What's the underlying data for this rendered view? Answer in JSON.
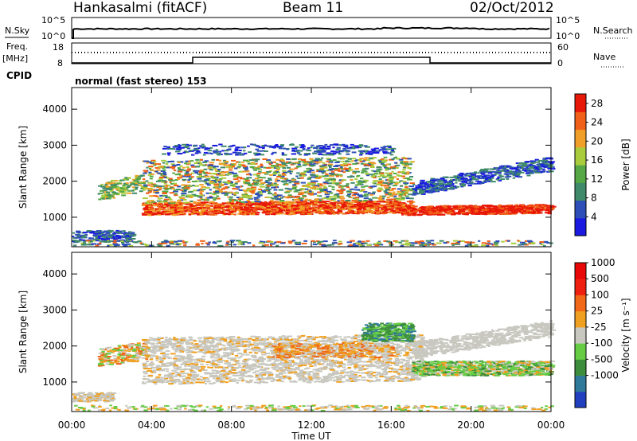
{
  "header": {
    "station": "Hankasalmi (fitACF)",
    "beam": "Beam 11",
    "date": "02/Oct/2012"
  },
  "noise_panel": {
    "left_label": "N.Sky",
    "right_label": "N.Search",
    "left_ticks": [
      "10^5",
      "10^0"
    ],
    "right_ticks": [
      "10^5",
      "10^0"
    ]
  },
  "freq_panel": {
    "left_label_1": "Freq.",
    "left_label_2": "[MHz]",
    "right_label": "Nave",
    "left_ticks": [
      "18",
      "8"
    ],
    "right_ticks": [
      "60",
      "0"
    ],
    "cpid_label": "CPID",
    "cpid_text": "normal (fast stereo) 153"
  },
  "chart_data": [
    {
      "type": "heatmap",
      "title": "",
      "xlabel": "Time UT",
      "ylabel": "Slant Range [km]",
      "x_ticks": [
        "00:00",
        "04:00",
        "08:00",
        "12:00",
        "16:00",
        "20:00",
        "00:00"
      ],
      "y_ticks": [
        1000,
        2000,
        3000,
        4000
      ],
      "ylim": [
        180,
        4600
      ],
      "colorbar": {
        "label": "Power [dB]",
        "ticks": [
          4,
          8,
          12,
          16,
          20,
          24,
          28
        ],
        "range": [
          0,
          30
        ],
        "colors": [
          "#1a1ae0",
          "#2e4fb8",
          "#3f8a6a",
          "#55a845",
          "#a8cc3c",
          "#f0a028",
          "#f06018",
          "#e81808"
        ]
      }
    },
    {
      "type": "heatmap",
      "title": "",
      "xlabel": "Time UT",
      "ylabel": "Slant Range [km]",
      "x_ticks": [
        "00:00",
        "04:00",
        "08:00",
        "12:00",
        "16:00",
        "20:00",
        "00:00"
      ],
      "y_ticks": [
        1000,
        2000,
        3000,
        4000
      ],
      "ylim": [
        180,
        4600
      ],
      "colorbar": {
        "label": "Velocity [m s⁻¹]",
        "ticks": [
          "1000",
          "500",
          "100",
          "25",
          "-25",
          "-100",
          "-500",
          "-1000"
        ],
        "colors": [
          "#2040c0",
          "#2f7a9a",
          "#3c8d3c",
          "#66cc44",
          "#c8c8c0",
          "#f0a020",
          "#f06818",
          "#f02010",
          "#e80808"
        ]
      }
    }
  ]
}
